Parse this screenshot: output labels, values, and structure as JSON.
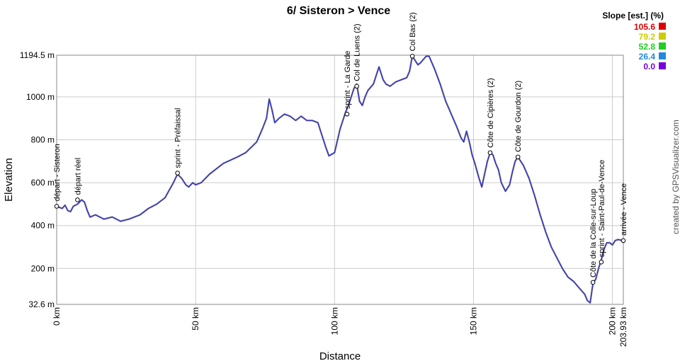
{
  "chart_data": {
    "type": "line",
    "title": "6/ Sisteron > Vence",
    "xlabel": "Distance",
    "ylabel": "Elevation",
    "xlim": [
      0,
      203.93
    ],
    "ylim": [
      32.6,
      1194.5
    ],
    "x_ticks": [
      {
        "value": 0,
        "label": "0 km"
      },
      {
        "value": 50,
        "label": "50 km"
      },
      {
        "value": 100,
        "label": "100 km"
      },
      {
        "value": 150,
        "label": "150 km"
      },
      {
        "value": 200,
        "label": "200 km"
      },
      {
        "value": 203.93,
        "label": "203.93 km"
      }
    ],
    "y_ticks": [
      {
        "value": 32.6,
        "label": "32.6 m"
      },
      {
        "value": 200,
        "label": "200 m"
      },
      {
        "value": 400,
        "label": "400 m"
      },
      {
        "value": 600,
        "label": "600 m"
      },
      {
        "value": 800,
        "label": "800 m"
      },
      {
        "value": 1000,
        "label": "1000 m"
      },
      {
        "value": 1194.5,
        "label": "1194.5 m"
      }
    ],
    "grid": true,
    "legend": {
      "title": "Slope [est.] (%)",
      "placement": "top-right",
      "entries": [
        {
          "label": "105.6",
          "color": "#dd0000"
        },
        {
          "label": "79.2",
          "color": "#cccc00"
        },
        {
          "label": "52.8",
          "color": "#22cc22"
        },
        {
          "label": "26.4",
          "color": "#2288dd"
        },
        {
          "label": "0.0",
          "color": "#7700dd"
        }
      ]
    },
    "line_colors": {
      "main": "#2a2ad8",
      "shade": "#8a8a8a"
    },
    "series": [
      {
        "x": [
          0,
          2,
          3,
          4,
          5,
          6,
          7.5,
          9,
          10,
          11,
          12,
          14,
          17,
          20,
          23,
          26,
          30,
          33,
          36,
          39,
          42,
          43.5,
          45,
          46.5,
          47.5,
          49,
          50,
          52,
          55,
          60,
          65,
          68,
          72,
          74,
          75.5,
          76.5,
          77.5,
          78.5,
          80,
          82,
          84,
          86,
          88,
          90,
          92,
          94,
          95.5,
          97,
          98,
          100,
          102,
          104,
          105,
          106,
          107,
          108,
          108.5,
          109,
          110,
          111,
          112,
          114,
          115,
          116,
          117.5,
          118.5,
          120,
          122,
          124,
          126,
          127,
          128,
          129,
          130,
          131,
          132,
          133,
          134,
          136,
          138,
          140,
          142,
          144,
          145.5,
          146.5,
          147.5,
          148.5,
          149.5,
          150.5,
          152,
          153,
          154,
          155,
          156,
          157,
          158,
          159,
          160,
          161.5,
          163,
          164,
          165,
          166,
          167,
          168,
          170,
          172,
          174,
          176,
          178,
          180,
          182,
          184,
          186,
          188,
          190,
          191,
          192,
          193,
          194,
          195,
          196,
          197,
          198,
          199,
          200,
          201,
          202,
          203.93
        ],
        "y": [
          490,
          480,
          495,
          470,
          465,
          490,
          500,
          520,
          510,
          470,
          440,
          450,
          430,
          440,
          420,
          430,
          450,
          480,
          500,
          530,
          600,
          640,
          620,
          590,
          580,
          600,
          590,
          600,
          640,
          690,
          720,
          740,
          790,
          850,
          900,
          990,
          940,
          880,
          900,
          920,
          910,
          890,
          910,
          890,
          890,
          880,
          820,
          760,
          725,
          740,
          850,
          930,
          960,
          1000,
          1040,
          1060,
          1020,
          980,
          960,
          1000,
          1030,
          1060,
          1100,
          1140,
          1080,
          1060,
          1050,
          1070,
          1080,
          1090,
          1120,
          1190,
          1170,
          1150,
          1160,
          1175,
          1190,
          1190,
          1130,
          1060,
          980,
          920,
          860,
          810,
          790,
          840,
          790,
          730,
          690,
          620,
          580,
          640,
          700,
          740,
          730,
          690,
          660,
          600,
          560,
          590,
          650,
          700,
          720,
          700,
          680,
          620,
          540,
          450,
          370,
          300,
          250,
          200,
          160,
          140,
          110,
          80,
          50,
          40,
          130,
          150,
          200,
          240,
          290,
          320,
          320,
          310,
          330,
          335,
          330
        ]
      }
    ],
    "waypoints": [
      {
        "x": 0,
        "y": 490,
        "label": "départ - Sisteron"
      },
      {
        "x": 7.5,
        "y": 520,
        "label": "départ réel"
      },
      {
        "x": 43.5,
        "y": 645,
        "label": "sprint - Préfaissal"
      },
      {
        "x": 104.5,
        "y": 920,
        "label": "sprint - La Garde"
      },
      {
        "x": 108,
        "y": 1050,
        "label": "Col de Luens (2)"
      },
      {
        "x": 128,
        "y": 1190,
        "label": "Col Bas (2)"
      },
      {
        "x": 156,
        "y": 740,
        "label": "Côte de Cipières (2)"
      },
      {
        "x": 166,
        "y": 720,
        "label": "Côte de Gourdon (2)"
      },
      {
        "x": 196,
        "y": 230,
        "label": "sprint - Saint-Paul-de-Vence"
      },
      {
        "x": 193,
        "y": 135,
        "label": "Côte de la Colle-sur-Loup"
      },
      {
        "x": 203.93,
        "y": 330,
        "label": "arrivée - Vence"
      }
    ]
  },
  "credit": "created by GPSVisualizer.com"
}
